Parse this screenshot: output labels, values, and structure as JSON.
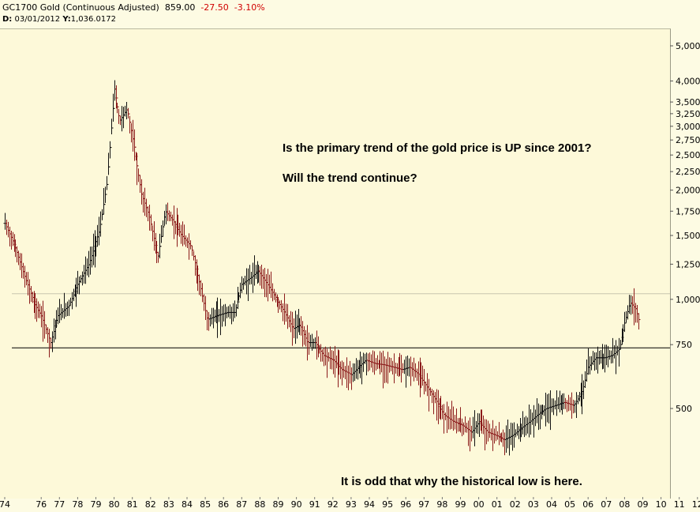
{
  "header": {
    "symbol_label": "GC1700 Gold (Continuous Adjusted)",
    "last_price": "859.00",
    "change": "-27.50",
    "change_pct": "-3.10%",
    "cursor_date_label": "D:",
    "cursor_date": "03/01/2012",
    "cursor_value_label": "Y:",
    "cursor_value": "1,036.0172"
  },
  "annotations": {
    "question_1": "Is the primary trend of the gold price is UP since 2001?",
    "question_2": "Will the trend continue?",
    "low_note": "It is odd that why the historical low is here."
  },
  "colors": {
    "background": "#fdf9d9",
    "up_bar": "#111111",
    "down_bar": "#8b1a1a",
    "negative_text": "#d00000",
    "support_line": "#000000",
    "cursor_line": "#c8c6b0"
  },
  "chart_data": {
    "type": "ohlc-bar",
    "scale": "log",
    "x_range": [
      1974.0,
      2012.5
    ],
    "y_range": [
      390,
      5500
    ],
    "x_tick_labels": [
      "74",
      "76",
      "77",
      "78",
      "79",
      "80",
      "81",
      "82",
      "83",
      "84",
      "85",
      "86",
      "87",
      "88",
      "89",
      "90",
      "91",
      "92",
      "93",
      "94",
      "95",
      "96",
      "97",
      "98",
      "99",
      "00",
      "01",
      "02",
      "03",
      "04",
      "05",
      "06",
      "07",
      "08",
      "09",
      "10",
      "11",
      "12"
    ],
    "x_tick_years": [
      1974,
      1976,
      1977,
      1978,
      1979,
      1980,
      1981,
      1982,
      1983,
      1984,
      1985,
      1986,
      1987,
      1988,
      1989,
      1990,
      1991,
      1992,
      1993,
      1994,
      1995,
      1996,
      1997,
      1998,
      1999,
      2000,
      2001,
      2002,
      2003,
      2004,
      2005,
      2006,
      2007,
      2008,
      2009,
      2010,
      2011,
      2012
    ],
    "y_ticks": [
      500,
      750,
      1000,
      1250,
      1500,
      1750,
      2000,
      2250,
      2500,
      2750,
      3000,
      3250,
      3500,
      4000,
      5000
    ],
    "y_tick_labels": [
      "500",
      "750",
      "1,000",
      "1,250",
      "1,500",
      "1,750",
      "2,000",
      "2,250",
      "2,500",
      "2,750",
      "3,000",
      "3,250",
      "3,500",
      "4,000",
      "5,000"
    ],
    "horizontal_lines": [
      {
        "value": 735,
        "role": "support"
      },
      {
        "value": 1036,
        "role": "cursor"
      }
    ],
    "price_path": [
      [
        1974.0,
        1620
      ],
      [
        1974.6,
        1380
      ],
      [
        1975.1,
        1150
      ],
      [
        1975.6,
        980
      ],
      [
        1976.0,
        900
      ],
      [
        1976.5,
        760
      ],
      [
        1976.9,
        900
      ],
      [
        1977.5,
        960
      ],
      [
        1978.0,
        1100
      ],
      [
        1978.6,
        1250
      ],
      [
        1979.2,
        1550
      ],
      [
        1979.6,
        2100
      ],
      [
        1980.0,
        3800
      ],
      [
        1980.3,
        3100
      ],
      [
        1980.7,
        3350
      ],
      [
        1981.1,
        2600
      ],
      [
        1981.5,
        1950
      ],
      [
        1981.9,
        1700
      ],
      [
        1982.4,
        1300
      ],
      [
        1982.8,
        1750
      ],
      [
        1983.2,
        1650
      ],
      [
        1983.7,
        1500
      ],
      [
        1984.2,
        1400
      ],
      [
        1984.7,
        1100
      ],
      [
        1985.1,
        880
      ],
      [
        1985.6,
        900
      ],
      [
        1986.2,
        920
      ],
      [
        1986.6,
        920
      ],
      [
        1987.0,
        1100
      ],
      [
        1987.5,
        1150
      ],
      [
        1987.9,
        1200
      ],
      [
        1988.4,
        1100
      ],
      [
        1988.9,
        1000
      ],
      [
        1989.3,
        930
      ],
      [
        1989.8,
        830
      ],
      [
        1990.2,
        850
      ],
      [
        1990.6,
        760
      ],
      [
        1991.0,
        760
      ],
      [
        1991.5,
        700
      ],
      [
        1992.0,
        680
      ],
      [
        1992.5,
        640
      ],
      [
        1993.0,
        620
      ],
      [
        1993.4,
        650
      ],
      [
        1993.8,
        680
      ],
      [
        1994.3,
        665
      ],
      [
        1994.8,
        660
      ],
      [
        1995.3,
        650
      ],
      [
        1995.8,
        640
      ],
      [
        1996.2,
        650
      ],
      [
        1996.7,
        620
      ],
      [
        1997.1,
        580
      ],
      [
        1997.6,
        530
      ],
      [
        1998.1,
        480
      ],
      [
        1998.6,
        460
      ],
      [
        1999.1,
        450
      ],
      [
        1999.6,
        430
      ],
      [
        2000.0,
        460
      ],
      [
        2000.5,
        430
      ],
      [
        2001.0,
        420
      ],
      [
        2001.4,
        410
      ],
      [
        2001.8,
        420
      ],
      [
        2002.3,
        440
      ],
      [
        2002.8,
        460
      ],
      [
        2003.2,
        480
      ],
      [
        2003.7,
        500
      ],
      [
        2004.2,
        510
      ],
      [
        2004.7,
        520
      ],
      [
        2005.2,
        510
      ],
      [
        2005.7,
        560
      ],
      [
        2006.0,
        650
      ],
      [
        2006.4,
        690
      ],
      [
        2006.9,
        690
      ],
      [
        2007.3,
        700
      ],
      [
        2007.7,
        730
      ],
      [
        2008.0,
        860
      ],
      [
        2008.3,
        980
      ],
      [
        2008.6,
        940
      ],
      [
        2008.8,
        860
      ]
    ]
  }
}
